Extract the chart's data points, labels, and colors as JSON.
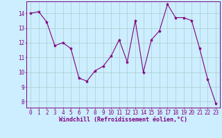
{
  "x": [
    0,
    1,
    2,
    3,
    4,
    5,
    6,
    7,
    8,
    9,
    10,
    11,
    12,
    13,
    14,
    15,
    16,
    17,
    18,
    19,
    20,
    21,
    22,
    23
  ],
  "y": [
    14.0,
    14.1,
    13.4,
    11.8,
    12.0,
    11.6,
    9.6,
    9.4,
    10.1,
    10.4,
    11.1,
    12.2,
    10.7,
    13.5,
    10.0,
    12.2,
    12.8,
    14.6,
    13.7,
    13.7,
    13.5,
    11.6,
    9.5,
    7.9
  ],
  "line_color": "#800080",
  "marker": "*",
  "marker_size": 3,
  "xlabel": "Windchill (Refroidissement éolien,°C)",
  "ylim": [
    7.6,
    14.8
  ],
  "xlim": [
    -0.5,
    23.5
  ],
  "yticks": [
    8,
    9,
    10,
    11,
    12,
    13,
    14
  ],
  "xticks": [
    0,
    1,
    2,
    3,
    4,
    5,
    6,
    7,
    8,
    9,
    10,
    11,
    12,
    13,
    14,
    15,
    16,
    17,
    18,
    19,
    20,
    21,
    22,
    23
  ],
  "background_color": "#cceeff",
  "grid_color": "#aacccc",
  "text_color": "#800080",
  "tick_fontsize": 5.5,
  "xlabel_fontsize": 6.0,
  "linewidth": 0.8
}
